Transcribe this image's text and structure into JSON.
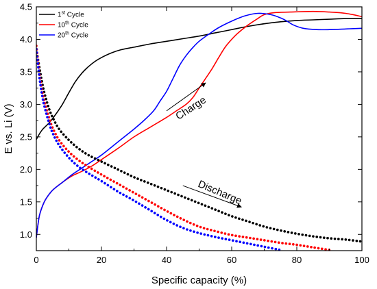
{
  "chart_data": {
    "type": "line",
    "xlabel": "Specific capacity (%)",
    "ylabel": "E vs. Li (V)",
    "xlim": [
      0,
      100
    ],
    "ylim": [
      0.75,
      4.5
    ],
    "x_ticks": [
      0,
      20,
      40,
      60,
      80,
      100
    ],
    "y_ticks": [
      1.0,
      1.5,
      2.0,
      2.5,
      3.0,
      3.5,
      4.0,
      4.5
    ],
    "legend": "top-left",
    "grid": false,
    "series": [
      {
        "name": "1st Cycle",
        "name_base": "1",
        "name_sup": "st",
        "name_rest": " Cycle",
        "color": "#000000",
        "style": "solid",
        "segment": "charge",
        "points": [
          [
            0,
            2.46
          ],
          [
            1,
            2.55
          ],
          [
            2,
            2.62
          ],
          [
            4,
            2.72
          ],
          [
            6,
            2.85
          ],
          [
            8,
            3.0
          ],
          [
            10,
            3.18
          ],
          [
            12,
            3.35
          ],
          [
            14,
            3.48
          ],
          [
            16,
            3.58
          ],
          [
            18,
            3.66
          ],
          [
            20,
            3.72
          ],
          [
            23,
            3.79
          ],
          [
            26,
            3.84
          ],
          [
            30,
            3.88
          ],
          [
            35,
            3.93
          ],
          [
            40,
            3.97
          ],
          [
            45,
            4.01
          ],
          [
            50,
            4.05
          ],
          [
            55,
            4.1
          ],
          [
            60,
            4.15
          ],
          [
            65,
            4.2
          ],
          [
            70,
            4.24
          ],
          [
            75,
            4.27
          ],
          [
            80,
            4.29
          ],
          [
            85,
            4.3
          ],
          [
            90,
            4.31
          ],
          [
            95,
            4.32
          ],
          [
            100,
            4.32
          ]
        ]
      },
      {
        "name": "10th Cycle",
        "name_base": "10",
        "name_sup": "th",
        "name_rest": " Cycle",
        "color": "#ff0000",
        "style": "solid",
        "segment": "charge",
        "points": [
          [
            0,
            0.95
          ],
          [
            0.5,
            1.15
          ],
          [
            1,
            1.3
          ],
          [
            2,
            1.45
          ],
          [
            3,
            1.55
          ],
          [
            5,
            1.68
          ],
          [
            8,
            1.8
          ],
          [
            11,
            1.9
          ],
          [
            14,
            1.97
          ],
          [
            17,
            2.05
          ],
          [
            20,
            2.15
          ],
          [
            25,
            2.32
          ],
          [
            30,
            2.5
          ],
          [
            35,
            2.65
          ],
          [
            40,
            2.8
          ],
          [
            43,
            2.9
          ],
          [
            46,
            3.0
          ],
          [
            48,
            3.1
          ],
          [
            50,
            3.25
          ],
          [
            52,
            3.4
          ],
          [
            54,
            3.55
          ],
          [
            56,
            3.72
          ],
          [
            58,
            3.88
          ],
          [
            60,
            4.0
          ],
          [
            62,
            4.1
          ],
          [
            65,
            4.22
          ],
          [
            68,
            4.32
          ],
          [
            70,
            4.38
          ],
          [
            73,
            4.41
          ],
          [
            78,
            4.42
          ],
          [
            85,
            4.43
          ],
          [
            90,
            4.42
          ],
          [
            95,
            4.4
          ],
          [
            100,
            4.35
          ]
        ]
      },
      {
        "name": "20th Cycle",
        "name_base": "20",
        "name_sup": "th",
        "name_rest": " Cycle",
        "color": "#0000ff",
        "style": "solid",
        "segment": "charge",
        "points": [
          [
            0,
            0.95
          ],
          [
            0.5,
            1.15
          ],
          [
            1,
            1.3
          ],
          [
            2,
            1.45
          ],
          [
            3,
            1.55
          ],
          [
            5,
            1.68
          ],
          [
            8,
            1.8
          ],
          [
            11,
            1.92
          ],
          [
            14,
            2.02
          ],
          [
            17,
            2.12
          ],
          [
            20,
            2.22
          ],
          [
            25,
            2.42
          ],
          [
            30,
            2.62
          ],
          [
            33,
            2.75
          ],
          [
            36,
            2.9
          ],
          [
            38,
            3.05
          ],
          [
            40,
            3.2
          ],
          [
            42,
            3.4
          ],
          [
            44,
            3.6
          ],
          [
            46,
            3.75
          ],
          [
            48,
            3.87
          ],
          [
            50,
            3.97
          ],
          [
            53,
            4.08
          ],
          [
            56,
            4.18
          ],
          [
            60,
            4.28
          ],
          [
            64,
            4.36
          ],
          [
            68,
            4.4
          ],
          [
            72,
            4.38
          ],
          [
            75,
            4.33
          ],
          [
            77,
            4.28
          ],
          [
            79,
            4.22
          ],
          [
            82,
            4.17
          ],
          [
            86,
            4.15
          ],
          [
            90,
            4.15
          ],
          [
            95,
            4.16
          ],
          [
            100,
            4.17
          ]
        ]
      },
      {
        "name": "1st Cycle",
        "color": "#000000",
        "style": "dotted",
        "segment": "discharge",
        "points": [
          [
            0,
            3.85
          ],
          [
            1,
            3.55
          ],
          [
            2,
            3.28
          ],
          [
            3,
            3.08
          ],
          [
            4,
            2.92
          ],
          [
            5,
            2.8
          ],
          [
            7,
            2.62
          ],
          [
            10,
            2.45
          ],
          [
            13,
            2.32
          ],
          [
            16,
            2.22
          ],
          [
            20,
            2.12
          ],
          [
            25,
            2.0
          ],
          [
            30,
            1.88
          ],
          [
            35,
            1.78
          ],
          [
            40,
            1.68
          ],
          [
            45,
            1.58
          ],
          [
            50,
            1.48
          ],
          [
            55,
            1.38
          ],
          [
            60,
            1.28
          ],
          [
            65,
            1.2
          ],
          [
            70,
            1.12
          ],
          [
            75,
            1.06
          ],
          [
            80,
            1.01
          ],
          [
            85,
            0.97
          ],
          [
            90,
            0.94
          ],
          [
            95,
            0.92
          ],
          [
            100,
            0.89
          ]
        ]
      },
      {
        "name": "10th Cycle",
        "color": "#ff0000",
        "style": "dotted",
        "segment": "discharge",
        "points": [
          [
            0,
            3.9
          ],
          [
            1,
            3.45
          ],
          [
            2,
            3.15
          ],
          [
            3,
            2.95
          ],
          [
            4,
            2.78
          ],
          [
            5,
            2.64
          ],
          [
            7,
            2.45
          ],
          [
            10,
            2.27
          ],
          [
            13,
            2.14
          ],
          [
            16,
            2.04
          ],
          [
            20,
            1.92
          ],
          [
            25,
            1.78
          ],
          [
            30,
            1.64
          ],
          [
            35,
            1.5
          ],
          [
            40,
            1.36
          ],
          [
            45,
            1.23
          ],
          [
            50,
            1.12
          ],
          [
            55,
            1.05
          ],
          [
            60,
            0.99
          ],
          [
            65,
            0.95
          ],
          [
            70,
            0.91
          ],
          [
            75,
            0.87
          ],
          [
            80,
            0.84
          ],
          [
            85,
            0.8
          ],
          [
            90,
            0.76
          ]
        ]
      },
      {
        "name": "20th Cycle",
        "color": "#0000ff",
        "style": "dotted",
        "segment": "discharge",
        "points": [
          [
            0,
            3.85
          ],
          [
            1,
            3.4
          ],
          [
            2,
            3.08
          ],
          [
            3,
            2.87
          ],
          [
            4,
            2.7
          ],
          [
            5,
            2.56
          ],
          [
            7,
            2.37
          ],
          [
            10,
            2.18
          ],
          [
            13,
            2.04
          ],
          [
            16,
            1.94
          ],
          [
            20,
            1.82
          ],
          [
            25,
            1.66
          ],
          [
            30,
            1.52
          ],
          [
            35,
            1.37
          ],
          [
            40,
            1.22
          ],
          [
            45,
            1.1
          ],
          [
            50,
            1.02
          ],
          [
            55,
            0.96
          ],
          [
            60,
            0.91
          ],
          [
            65,
            0.86
          ],
          [
            70,
            0.81
          ],
          [
            75,
            0.76
          ]
        ]
      }
    ],
    "annotations": [
      {
        "text": "Charge",
        "x": 48,
        "y": 2.9,
        "angle": -33
      },
      {
        "text": "Discharge",
        "x": 56,
        "y": 1.6,
        "angle": 23
      }
    ],
    "arrows": [
      {
        "from": [
          40,
          2.9
        ],
        "to": [
          52,
          3.33
        ]
      },
      {
        "from": [
          45,
          1.75
        ],
        "to": [
          63,
          1.42
        ]
      }
    ]
  }
}
